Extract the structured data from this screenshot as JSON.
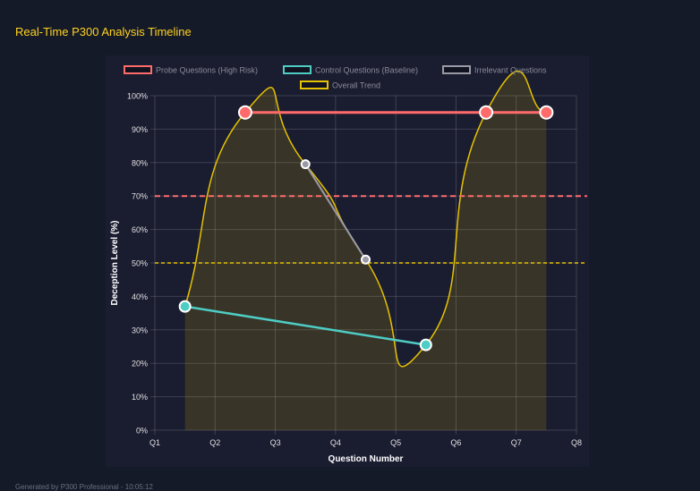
{
  "header": {
    "title": "Real-Time P300 Analysis Timeline"
  },
  "footer": {
    "text": "Generated by P300 Professional - 10:05:12"
  },
  "chart_data": {
    "type": "line",
    "categories": [
      "Q1",
      "Q2",
      "Q3",
      "Q4",
      "Q5",
      "Q6",
      "Q7",
      "Q8"
    ],
    "xlabel": "Question Number",
    "ylabel": "Deception Level (%)",
    "ylim": [
      0,
      100
    ],
    "yticks": [
      "0%",
      "10%",
      "20%",
      "30%",
      "40%",
      "50%",
      "60%",
      "70%",
      "80%",
      "90%",
      "100%"
    ],
    "grid": true,
    "legend_position": "top",
    "series": [
      {
        "name": "Probe Questions (High Risk)",
        "color": "#ff6b6b",
        "points": [
          [
            1,
            95
          ],
          [
            5,
            95
          ],
          [
            6,
            95
          ]
        ]
      },
      {
        "name": "Control Questions (Baseline)",
        "color": "#4ecdc4",
        "points": [
          [
            0,
            37
          ],
          [
            4,
            25.5
          ]
        ]
      },
      {
        "name": "Irrelevant Questions",
        "color": "#9a9aa6",
        "points": [
          [
            2,
            79.5
          ],
          [
            3,
            51
          ]
        ]
      },
      {
        "name": "Overall Trend",
        "color": "#e6c200",
        "points": [
          [
            0,
            37
          ],
          [
            1,
            95
          ],
          [
            2,
            79.5
          ],
          [
            3,
            51
          ],
          [
            4,
            25.5
          ],
          [
            5,
            95
          ],
          [
            6,
            95
          ]
        ],
        "filled": true
      }
    ],
    "thresholds": [
      {
        "value": 70,
        "color": "#ff6b6b"
      },
      {
        "value": 50,
        "color": "#e6c200"
      }
    ]
  }
}
